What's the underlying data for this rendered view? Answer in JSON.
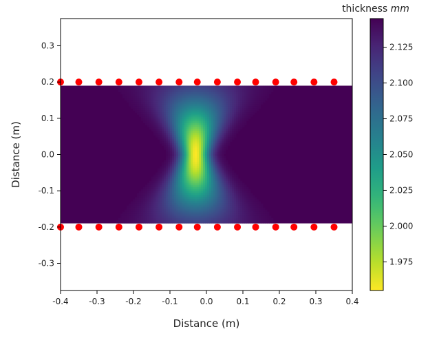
{
  "chart_data": {
    "type": "heatmap",
    "title": "",
    "xlabel": "Distance (m)",
    "ylabel": "Distance (m)",
    "xlim": [
      -0.4,
      0.4
    ],
    "ylim": [
      -0.375,
      0.375
    ],
    "x_ticks": [
      "-0.4",
      "-0.3",
      "-0.2",
      "-0.1",
      "0.0",
      "0.1",
      "0.2",
      "0.3",
      "0.4"
    ],
    "y_ticks": [
      "-0.3",
      "-0.2",
      "-0.1",
      "0.0",
      "0.1",
      "0.2",
      "0.3"
    ],
    "field": {
      "x_range": [
        -0.4,
        0.4
      ],
      "y_range": [
        -0.19,
        0.19
      ],
      "background_thickness_mm": 2.145,
      "minimum": {
        "x": -0.03,
        "y": 0.0,
        "thickness_mm": 1.955
      },
      "colormap": "viridis_r"
    },
    "colorbar": {
      "label_text": "thickness ",
      "label_unit": "mm",
      "range": [
        1.955,
        2.145
      ],
      "ticks": [
        "1.975",
        "2.000",
        "2.025",
        "2.050",
        "2.075",
        "2.100",
        "2.125"
      ]
    },
    "markers": {
      "color": "#ff0000",
      "top_y": 0.2,
      "bottom_y": -0.2,
      "x": [
        -0.4,
        -0.35,
        -0.295,
        -0.24,
        -0.185,
        -0.13,
        -0.075,
        -0.025,
        0.03,
        0.085,
        0.135,
        0.19,
        0.24,
        0.295,
        0.35
      ]
    }
  }
}
